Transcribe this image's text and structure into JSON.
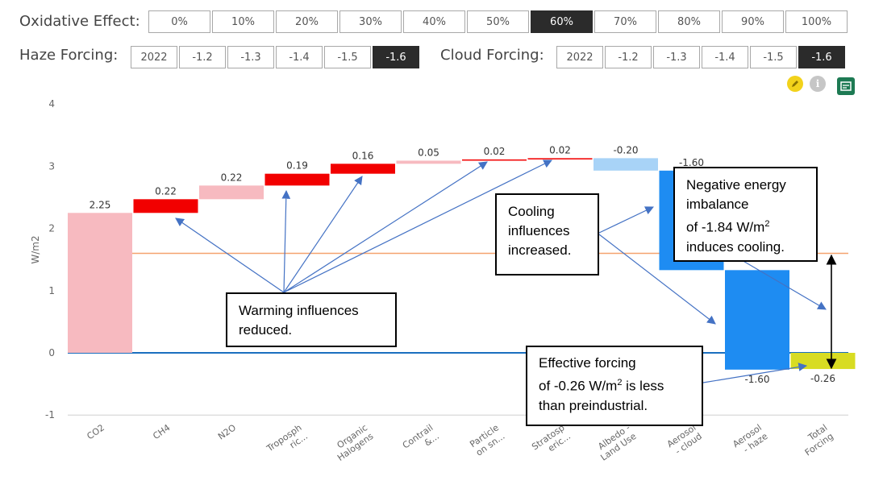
{
  "controls": {
    "oxidative": {
      "label": "Oxidative Effect:",
      "options": [
        "0%",
        "10%",
        "20%",
        "30%",
        "40%",
        "50%",
        "60%",
        "70%",
        "80%",
        "90%",
        "100%"
      ],
      "selected": "60%"
    },
    "haze": {
      "label": "Haze Forcing:",
      "options": [
        "2022",
        "-1.2",
        "-1.3",
        "-1.4",
        "-1.5",
        "-1.6"
      ],
      "selected": "-1.6"
    },
    "cloud": {
      "label": "Cloud Forcing:",
      "options": [
        "2022",
        "-1.2",
        "-1.3",
        "-1.4",
        "-1.5",
        "-1.6"
      ],
      "selected": "-1.6"
    }
  },
  "toolbar": {
    "edit_icon": "pencil-icon",
    "info_icon": "info-icon",
    "info_glyph": "i",
    "export_icon": "export-icon"
  },
  "chart_data": {
    "type": "waterfall",
    "ylabel": "W/m2",
    "ylim": [
      -1,
      4
    ],
    "yticks": [
      -1,
      0,
      1,
      2,
      3,
      4
    ],
    "categories": [
      "CO2",
      "CH4",
      "N2O",
      "Tropospheric...",
      "Organic Halogens",
      "Contrail &...",
      "Particle on sn...",
      "Stratospheric...",
      "Albedo - Land Use",
      "Aerosol - cloud",
      "Aerosol - haze",
      "Total Forcing"
    ],
    "tick_labels": [
      [
        "CO2"
      ],
      [
        "CH4"
      ],
      [
        "N2O"
      ],
      [
        "Troposph",
        "ric..."
      ],
      [
        "Organic",
        "Halogens"
      ],
      [
        "Contrail",
        "&..."
      ],
      [
        "Particle",
        "on sn..."
      ],
      [
        "Stratosp",
        "eric..."
      ],
      [
        "Albedo -",
        "Land Use"
      ],
      [
        "Aerosol",
        "- cloud"
      ],
      [
        "Aerosol",
        "- haze"
      ],
      [
        "Total",
        "Forcing"
      ]
    ],
    "values": [
      2.25,
      0.22,
      0.22,
      0.19,
      0.16,
      0.05,
      0.02,
      0.02,
      -0.2,
      -1.6,
      -1.6,
      -0.26
    ],
    "data_labels": [
      "2.25",
      "0.22",
      "0.22",
      "0.19",
      "0.16",
      "0.05",
      "0.02",
      "0.02",
      "-0.20",
      "-1.60",
      "-1.60",
      "-0.26"
    ],
    "colors": [
      "#f7bac0",
      "#f20000",
      "#f7bac0",
      "#f20000",
      "#f20000",
      "#f7bac0",
      "#f20000",
      "#f20000",
      "#a8d3f7",
      "#1e8cf2",
      "#1e8cf2",
      "#d8dc22"
    ],
    "reference_lines": [
      {
        "value": 0,
        "color": "#1a6fbf"
      },
      {
        "value": 1.6,
        "color": "#f5a36f"
      }
    ]
  },
  "annotations": {
    "warming": [
      "Warming influences",
      "reduced."
    ],
    "cooling": [
      "Cooling",
      "influences",
      "increased."
    ],
    "negative": {
      "line1": "Negative energy",
      "line2": "imbalance",
      "line3_pre": "of -1.84 W/m",
      "sup": "2",
      "line4": "induces cooling."
    },
    "effective": {
      "line1": "Effective forcing",
      "line2_pre": "of -0.26 W/m",
      "sup": "2",
      "line2_post": " is less",
      "line3": "than preindustrial."
    }
  }
}
